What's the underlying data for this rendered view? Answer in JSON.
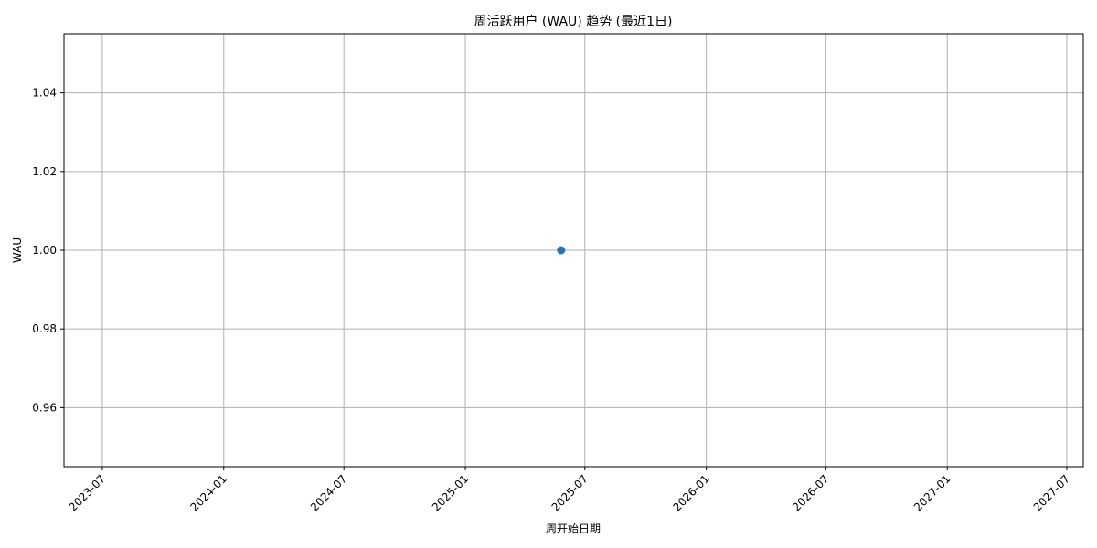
{
  "chart_data": {
    "type": "line",
    "title": "周活跃用户 (WAU) 趋势 (最近1日)",
    "xlabel": "周开始日期",
    "ylabel": "WAU",
    "x_tick_labels": [
      "2023-07",
      "2024-01",
      "2024-07",
      "2025-01",
      "2025-07",
      "2026-01",
      "2026-07",
      "2027-01",
      "2027-07"
    ],
    "y_tick_labels": [
      "0.96",
      "0.98",
      "1.00",
      "1.02",
      "1.04"
    ],
    "ylim": [
      0.945,
      1.055
    ],
    "xlim": [
      "2023-05-04",
      "2027-07-26"
    ],
    "grid": true,
    "marker": "circle",
    "series": [
      {
        "color": "#1f77b4",
        "points": [
          {
            "x": "2025-05-26",
            "y": 1.0
          }
        ]
      }
    ]
  }
}
